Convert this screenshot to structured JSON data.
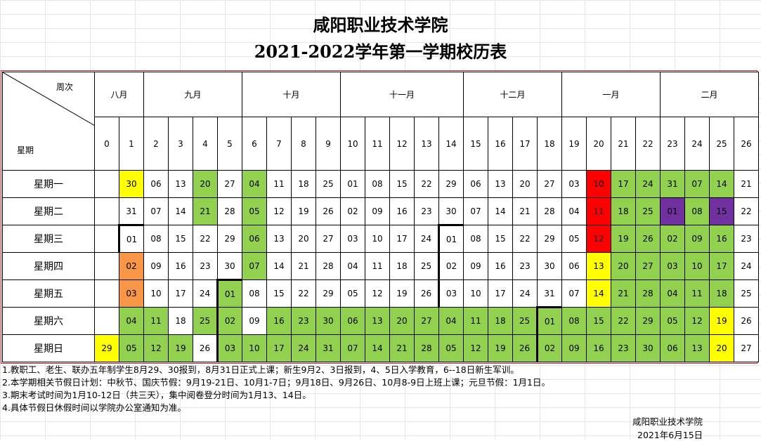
{
  "title_line1": "咸阳职业技术学院",
  "title_line2": "2021-2022学年第一学期校历表",
  "corner_week_label": "周次",
  "corner_day_label": "星期",
  "months": [
    "八月",
    "九月",
    "十月",
    "十一月",
    "十二月",
    "一月",
    "二月"
  ],
  "weeks": [
    "0",
    "1",
    "2",
    "3",
    "4",
    "5",
    "6",
    "7",
    "8",
    "9",
    "10",
    "11",
    "12",
    "13",
    "14",
    "15",
    "16",
    "17",
    "18",
    "19",
    "20",
    "21",
    "22",
    "23",
    "24",
    "25",
    "26"
  ],
  "day_names": [
    "星期一",
    "星期二",
    "星期三",
    "星期四",
    "星期五",
    "星期六",
    "星期日"
  ],
  "rows": [
    [
      "",
      "30",
      "06",
      "13",
      "20",
      "27",
      "04",
      "11",
      "18",
      "25",
      "01",
      "08",
      "15",
      "22",
      "29",
      "06",
      "13",
      "20",
      "27",
      "03",
      "10",
      "17",
      "24",
      "31",
      "07",
      "14",
      "21"
    ],
    [
      "",
      "31",
      "07",
      "14",
      "21",
      "28",
      "05",
      "12",
      "19",
      "26",
      "02",
      "09",
      "16",
      "23",
      "30",
      "07",
      "14",
      "21",
      "28",
      "04",
      "11",
      "18",
      "25",
      "01",
      "08",
      "15",
      "22"
    ],
    [
      "",
      "01",
      "08",
      "15",
      "22",
      "29",
      "06",
      "13",
      "20",
      "27",
      "03",
      "10",
      "17",
      "24",
      "01",
      "08",
      "15",
      "22",
      "29",
      "05",
      "12",
      "19",
      "26",
      "02",
      "09",
      "16",
      "23"
    ],
    [
      "",
      "02",
      "09",
      "16",
      "23",
      "30",
      "07",
      "14",
      "21",
      "28",
      "04",
      "11",
      "18",
      "25",
      "02",
      "09",
      "16",
      "23",
      "30",
      "06",
      "13",
      "20",
      "27",
      "03",
      "10",
      "17",
      "24"
    ],
    [
      "",
      "03",
      "10",
      "17",
      "24",
      "01",
      "08",
      "15",
      "22",
      "29",
      "05",
      "12",
      "19",
      "26",
      "03",
      "10",
      "17",
      "24",
      "31",
      "07",
      "14",
      "21",
      "28",
      "04",
      "11",
      "18",
      "25"
    ],
    [
      "",
      "04",
      "11",
      "18",
      "25",
      "02",
      "09",
      "16",
      "23",
      "30",
      "06",
      "13",
      "20",
      "27",
      "04",
      "11",
      "18",
      "25",
      "01",
      "08",
      "15",
      "22",
      "29",
      "05",
      "12",
      "19",
      "26"
    ],
    [
      "29",
      "05",
      "12",
      "19",
      "26",
      "03",
      "10",
      "17",
      "24",
      "31",
      "07",
      "14",
      "21",
      "28",
      "05",
      "12",
      "19",
      "26",
      "02",
      "09",
      "16",
      "23",
      "30",
      "06",
      "13",
      "20",
      "27"
    ]
  ],
  "colors": {
    "green": "#92d050",
    "yellow": "#ffff00",
    "orange": "#f79646",
    "red": "#ff0000",
    "purple": "#7030a0",
    "border_red": "#d9262b"
  },
  "notes": [
    "1.教职工、老生、联办五年制学生8月29、30报到，8月31日正式上课；新生9月2、3日报到，4、5日入学教育，6--18日新生军训。",
    "2.本学期相关节假日计划：中秋节、国庆节假：9月19-21日、10月1-7日；9月18日、9月26日、10月8-9日上班上课；元旦节假：1月1日。",
    "3.期末考试时间为1月10-12日（共三天），集中阅卷登分时间为1月13、14日。",
    "4.具体节假日休假时间以学院办公室通知为准。"
  ],
  "footer_org": "咸阳职业技术学院",
  "footer_date": "2021年6月15日"
}
